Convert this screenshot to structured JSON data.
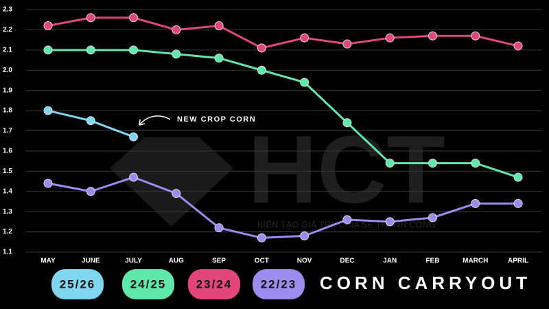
{
  "chart_data": {
    "type": "line",
    "title": "CORN CARRYOUT",
    "categories": [
      "MAY",
      "JUNE",
      "JULY",
      "AUG",
      "SEP",
      "OCT",
      "NOV",
      "DEC",
      "JAN",
      "FEB",
      "MARCH",
      "APRIL"
    ],
    "series": [
      {
        "name": "25/26",
        "color": "#7fd6ef",
        "values": [
          1.8,
          1.75,
          1.67,
          null,
          null,
          null,
          null,
          null,
          null,
          null,
          null,
          null
        ]
      },
      {
        "name": "24/25",
        "color": "#5fe8a9",
        "values": [
          2.1,
          2.1,
          2.1,
          2.08,
          2.06,
          2.0,
          1.94,
          1.74,
          1.54,
          1.54,
          1.54,
          1.47
        ]
      },
      {
        "name": "23/24",
        "color": "#e2467d",
        "values": [
          2.22,
          2.26,
          2.26,
          2.2,
          2.22,
          2.11,
          2.16,
          2.13,
          2.16,
          2.17,
          2.17,
          2.12
        ]
      },
      {
        "name": "22/23",
        "color": "#9d8bee",
        "values": [
          1.44,
          1.4,
          1.47,
          1.39,
          1.22,
          1.17,
          1.18,
          1.26,
          1.25,
          1.27,
          1.34,
          1.34
        ]
      }
    ],
    "ylim": [
      1.1,
      2.3
    ],
    "yticks": [
      1.1,
      1.2,
      1.3,
      1.4,
      1.5,
      1.6,
      1.7,
      1.8,
      1.9,
      {
        "value": 2,
        "label": "2.0"
      },
      2.1,
      2.2,
      2.3
    ],
    "grid": true,
    "annotation": "NEW CROP CORN",
    "watermark": {
      "logo": "HCT",
      "tagline": "KIẾN TẠO GIÁ TRỊ, CHIA SẺ THÀNH CÔNG"
    }
  }
}
